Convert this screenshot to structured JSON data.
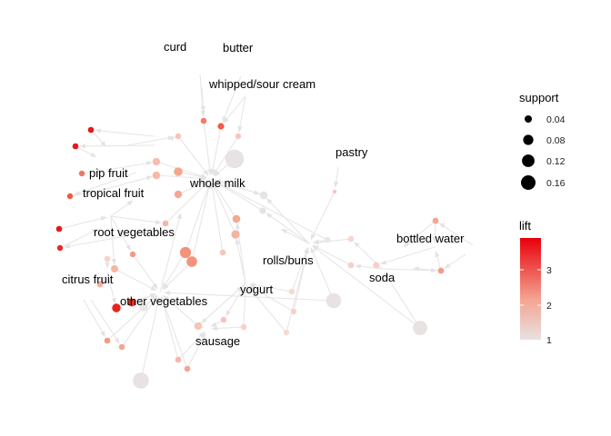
{
  "items": {
    "curd": "curd",
    "butter": "butter",
    "whipped_sour_cream": "whipped/sour cream",
    "pastry": "pastry",
    "whole_milk": "whole milk",
    "pip_fruit": "pip fruit",
    "tropical_fruit": "tropical fruit",
    "root_vegetables": "root vegetables",
    "bottled_water": "bottled water",
    "rolls_buns": "rolls/buns",
    "soda": "soda",
    "citrus_fruit": "citrus fruit",
    "yogurt": "yogurt",
    "other_vegetables": "other vegetables",
    "sausage": "sausage"
  },
  "legend": {
    "support": {
      "title": "support",
      "entries": [
        {
          "label": "0.04",
          "value": 0.04
        },
        {
          "label": "0.08",
          "value": 0.08
        },
        {
          "label": "0.12",
          "value": 0.12
        },
        {
          "label": "0.16",
          "value": 0.16
        }
      ]
    },
    "lift": {
      "title": "lift",
      "ticks": [
        {
          "label": "3",
          "value": 3
        },
        {
          "label": "2",
          "value": 2
        },
        {
          "label": "1",
          "value": 1
        }
      ],
      "min": 1,
      "max": 3.9,
      "color_low": "#e8e2e2",
      "color_high": "#e8000b"
    }
  },
  "colors": {
    "edge": "#e6e6e6",
    "text": "#000000",
    "background": "#ffffff"
  }
}
